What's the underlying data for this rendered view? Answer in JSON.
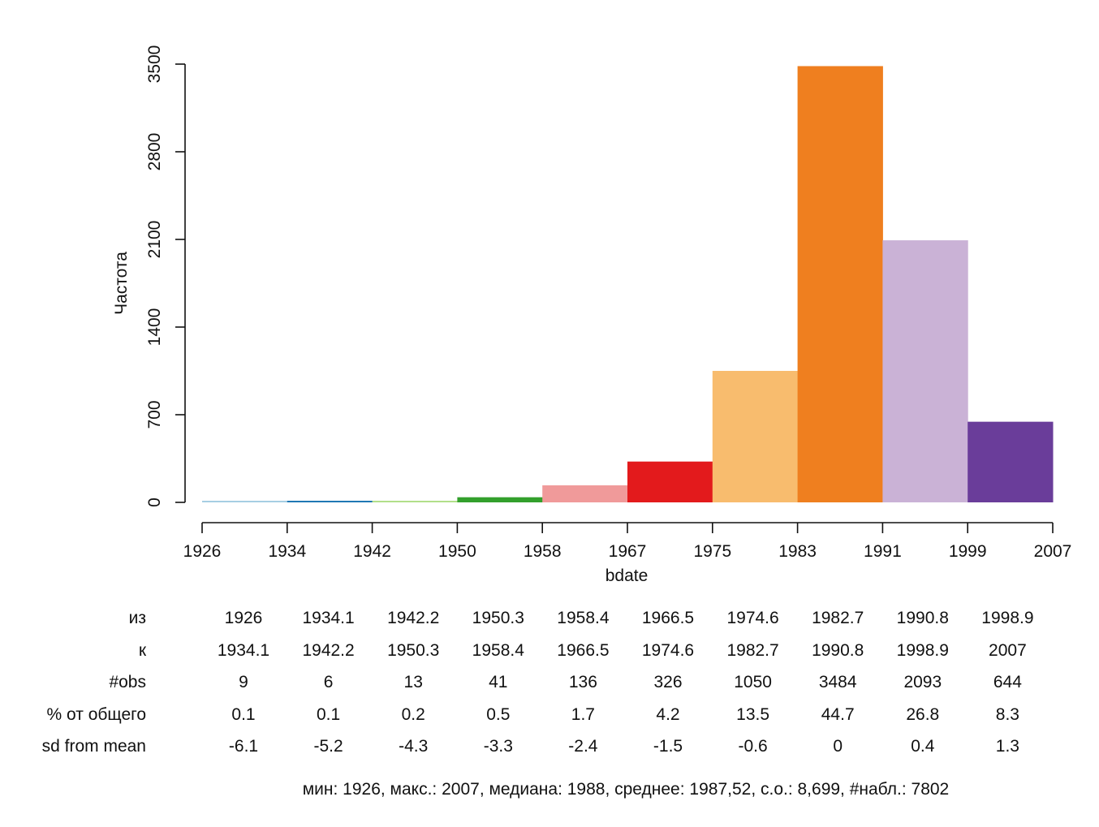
{
  "chart_data": {
    "type": "bar",
    "xlabel": "bdate",
    "ylabel": "Частота",
    "ylim": [
      0,
      3500
    ],
    "y_ticks": [
      0,
      700,
      1400,
      2100,
      2800,
      3500
    ],
    "x_ticks": [
      1926,
      1934,
      1942,
      1950,
      1958,
      1967,
      1975,
      1983,
      1991,
      1999,
      2007
    ],
    "grid": false,
    "bins": [
      {
        "from": "1926",
        "to": "1934.1",
        "obs": 9,
        "pct": "0.1",
        "sd": "-6.1",
        "color": "#a6cee3"
      },
      {
        "from": "1934.1",
        "to": "1942.2",
        "obs": 6,
        "pct": "0.1",
        "sd": "-5.2",
        "color": "#1f78b4"
      },
      {
        "from": "1942.2",
        "to": "1950.3",
        "obs": 13,
        "pct": "0.2",
        "sd": "-4.3",
        "color": "#b2df8a"
      },
      {
        "from": "1950.3",
        "to": "1958.4",
        "obs": 41,
        "pct": "0.5",
        "sd": "-3.3",
        "color": "#33a02c"
      },
      {
        "from": "1958.4",
        "to": "1966.5",
        "obs": 136,
        "pct": "1.7",
        "sd": "-2.4",
        "color": "#f09a9a"
      },
      {
        "from": "1966.5",
        "to": "1974.6",
        "obs": 326,
        "pct": "4.2",
        "sd": "-1.5",
        "color": "#e31a1c"
      },
      {
        "from": "1974.6",
        "to": "1982.7",
        "obs": 1050,
        "pct": "13.5",
        "sd": "-0.6",
        "color": "#f8bc6e"
      },
      {
        "from": "1982.7",
        "to": "1990.8",
        "obs": 3484,
        "pct": "44.7",
        "sd": "0",
        "color": "#ef7f1f"
      },
      {
        "from": "1990.8",
        "to": "1998.9",
        "obs": 2093,
        "pct": "26.8",
        "sd": "0.4",
        "color": "#cab2d6"
      },
      {
        "from": "1998.9",
        "to": "2007",
        "obs": 644,
        "pct": "8.3",
        "sd": "1.3",
        "color": "#6a3d9a"
      }
    ],
    "table_row_labels": {
      "from": "из",
      "to": "к",
      "obs": "#obs",
      "pct": "% от общего",
      "sd": "sd from mean"
    },
    "summary": "мин: 1926, макс.: 2007, медиана: 1988, среднее: 1987,52, с.о.: 8,699, #набл.: 7802"
  }
}
